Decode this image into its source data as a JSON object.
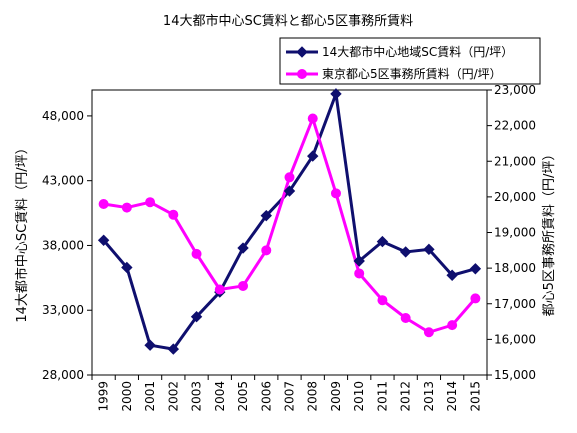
{
  "chart_data": {
    "type": "line",
    "title": "14大都市中心SC賃料と都心5区事務所賃料",
    "x": [
      "1999",
      "2000",
      "2001",
      "2002",
      "2003",
      "2004",
      "2005",
      "2006",
      "2007",
      "2008",
      "2009",
      "2010",
      "2011",
      "2012",
      "2013",
      "2014",
      "2015"
    ],
    "ylabel_left": "14大都市中心SC賃料（円/坪）",
    "ylabel_right": "都心5区事務所賃料（円/坪）",
    "ylim_left": [
      28000,
      50000
    ],
    "yticks_left": [
      "28,000",
      "33,000",
      "38,000",
      "43,000",
      "48,000"
    ],
    "ylim_right": [
      15000,
      23000
    ],
    "yticks_right": [
      "15,000",
      "16,000",
      "17,000",
      "18,000",
      "19,000",
      "20,000",
      "21,000",
      "22,000",
      "23,000"
    ],
    "legend_position": "top-right",
    "grid": false,
    "series": [
      {
        "name": "14大都市中心地域SC賃料（円/坪）",
        "axis": "left",
        "color": "#0f0f6e",
        "marker": "diamond",
        "values": [
          38400,
          36300,
          30300,
          30000,
          32500,
          34400,
          37800,
          40300,
          42200,
          44900,
          49700,
          36800,
          38300,
          37500,
          37700,
          35700,
          36200
        ]
      },
      {
        "name": "東京都心5区事務所賃料（円/坪）",
        "axis": "right",
        "color": "#ff00ff",
        "marker": "circle",
        "values": [
          19800,
          19700,
          19850,
          19500,
          18400,
          17400,
          17500,
          18500,
          20550,
          22200,
          20100,
          17850,
          17100,
          16600,
          16200,
          16400,
          17150
        ]
      }
    ]
  }
}
